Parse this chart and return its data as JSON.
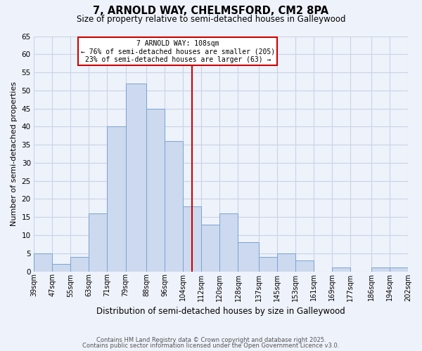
{
  "title": "7, ARNOLD WAY, CHELMSFORD, CM2 8PA",
  "subtitle": "Size of property relative to semi-detached houses in Galleywood",
  "xlabel": "Distribution of semi-detached houses by size in Galleywood",
  "ylabel": "Number of semi-detached properties",
  "bins": [
    39,
    47,
    55,
    63,
    71,
    79,
    88,
    96,
    104,
    112,
    120,
    128,
    137,
    145,
    153,
    161,
    169,
    177,
    186,
    194,
    202
  ],
  "counts": [
    5,
    2,
    4,
    16,
    40,
    52,
    45,
    36,
    18,
    13,
    16,
    8,
    4,
    5,
    3,
    0,
    1,
    0,
    1,
    1
  ],
  "bar_facecolor": "#ccd9ee",
  "bar_edgecolor": "#7aa3d4",
  "grid_color": "#c8d4e8",
  "background_color": "#eef2fa",
  "vline_x": 108,
  "vline_color": "#cc0000",
  "annotation_title": "7 ARNOLD WAY: 108sqm",
  "annotation_line1": "← 76% of semi-detached houses are smaller (205)",
  "annotation_line2": "23% of semi-detached houses are larger (63) →",
  "annotation_box_color": "#cc0000",
  "ylim": [
    0,
    65
  ],
  "yticks": [
    0,
    5,
    10,
    15,
    20,
    25,
    30,
    35,
    40,
    45,
    50,
    55,
    60,
    65
  ],
  "footnote1": "Contains HM Land Registry data © Crown copyright and database right 2025.",
  "footnote2": "Contains public sector information licensed under the Open Government Licence v3.0."
}
